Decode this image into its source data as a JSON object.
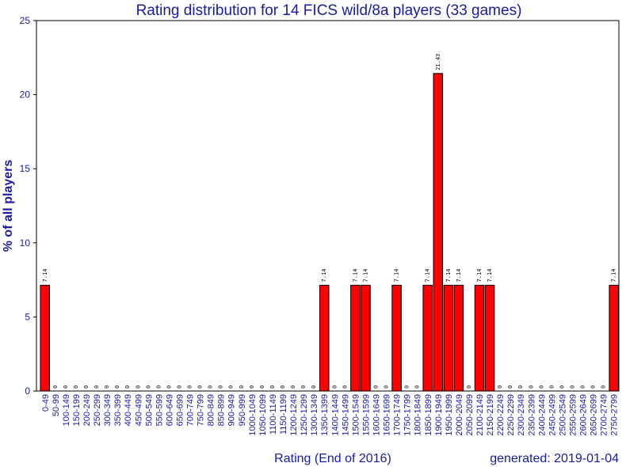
{
  "chart_data": {
    "type": "bar",
    "title": "Rating distribution for 14 FICS wild/8a players (33 games)",
    "xlabel": "Rating (End of 2016)",
    "ylabel": "% of all players",
    "footer": "generated: 2019-01-04",
    "ylim": [
      0,
      25
    ],
    "yticks": [
      0,
      5,
      10,
      15,
      20,
      25
    ],
    "grid": false,
    "legend": "none",
    "colors": {
      "bar": "#ff0000",
      "text": "#1a1aa6",
      "axis": "#000000"
    },
    "categories": [
      "0-49",
      "50-99",
      "100-149",
      "150-199",
      "200-249",
      "250-299",
      "300-349",
      "350-399",
      "400-449",
      "450-499",
      "500-549",
      "550-599",
      "600-649",
      "650-699",
      "700-749",
      "750-799",
      "800-849",
      "850-899",
      "900-949",
      "950-999",
      "1000-1049",
      "1050-1099",
      "1100-1149",
      "1150-1199",
      "1200-1249",
      "1250-1299",
      "1300-1349",
      "1350-1399",
      "1400-1449",
      "1450-1499",
      "1500-1549",
      "1550-1599",
      "1600-1649",
      "1650-1699",
      "1700-1749",
      "1750-1799",
      "1800-1849",
      "1850-1899",
      "1900-1949",
      "1950-1999",
      "2000-2049",
      "2050-2099",
      "2100-2149",
      "2150-2199",
      "2200-2249",
      "2250-2299",
      "2300-2349",
      "2350-2399",
      "2400-2449",
      "2450-2499",
      "2500-2549",
      "2550-2599",
      "2600-2649",
      "2650-2699",
      "2700-2749",
      "2750-2799"
    ],
    "values": [
      7.14,
      0,
      0,
      0,
      0,
      0,
      0,
      0,
      0,
      0,
      0,
      0,
      0,
      0,
      0,
      0,
      0,
      0,
      0,
      0,
      0,
      0,
      0,
      0,
      0,
      0,
      0,
      7.14,
      0,
      0,
      7.14,
      7.14,
      0,
      0,
      7.14,
      0,
      0,
      7.14,
      21.43,
      7.14,
      7.14,
      0,
      7.14,
      7.14,
      0,
      0,
      0,
      0,
      0,
      0,
      0,
      0,
      0,
      0,
      0,
      7.14
    ],
    "value_labels": [
      "7.14",
      "0",
      "0",
      "0",
      "0",
      "0",
      "0",
      "0",
      "0",
      "0",
      "0",
      "0",
      "0",
      "0",
      "0",
      "0",
      "0",
      "0",
      "0",
      "0",
      "0",
      "0",
      "0",
      "0",
      "0",
      "0",
      "0",
      "7.14",
      "0",
      "0",
      "7.14",
      "7.14",
      "0",
      "0",
      "7.14",
      "0",
      "0",
      "7.14",
      "21.43",
      "7.14",
      "7.14",
      "0",
      "7.14",
      "7.14",
      "0",
      "0",
      "0",
      "0",
      "0",
      "0",
      "0",
      "0",
      "0",
      "0",
      "0",
      "7.14"
    ]
  }
}
